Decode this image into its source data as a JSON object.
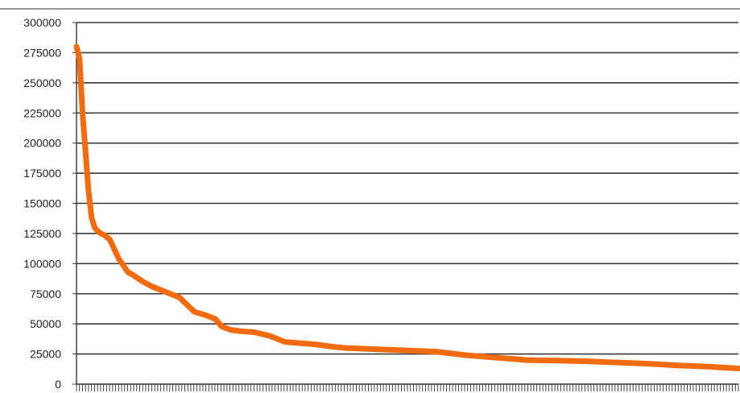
{
  "chart_data": {
    "type": "line",
    "title": "",
    "xlabel": "",
    "ylabel": "",
    "ylim": [
      0,
      300000
    ],
    "yticks": [
      {
        "value": 0,
        "label": "0"
      },
      {
        "value": 25000,
        "label": "25000"
      },
      {
        "value": 50000,
        "label": "50000"
      },
      {
        "value": 75000,
        "label": "75000"
      },
      {
        "value": 100000,
        "label": "100000"
      },
      {
        "value": 125000,
        "label": "125000"
      },
      {
        "value": 150000,
        "label": "150000"
      },
      {
        "value": 175000,
        "label": "175000"
      },
      {
        "value": 200000,
        "label": "200000"
      },
      {
        "value": 225000,
        "label": "225000"
      },
      {
        "value": 250000,
        "label": "250000"
      },
      {
        "value": 275000,
        "label": "275000"
      },
      {
        "value": 300000,
        "label": "300000"
      }
    ],
    "grid": true,
    "legend": "none",
    "x_category_count": 220,
    "colors": {
      "series": "#f26b0f",
      "grid": "#3a3a3a",
      "axis": "#333333",
      "tick_label": "#222222"
    },
    "series": [
      {
        "x": [
          1,
          2,
          3,
          5,
          6,
          7,
          8,
          9,
          10,
          12,
          15,
          18,
          20,
          23,
          26,
          30,
          35,
          40,
          44,
          47,
          49,
          52,
          55,
          60,
          65,
          70,
          75,
          80,
          86,
          90,
          100,
          110,
          120,
          130,
          140,
          150,
          160,
          170,
          180,
          190,
          200,
          210,
          220
        ],
        "values": [
          280000,
          270000,
          225000,
          160000,
          138000,
          130000,
          127000,
          125000,
          124000,
          120000,
          104000,
          93000,
          90000,
          85000,
          81000,
          77000,
          72000,
          60000,
          57000,
          54000,
          48000,
          45000,
          44000,
          43000,
          40000,
          35000,
          34000,
          33000,
          31000,
          30000,
          29000,
          28000,
          27000,
          24000,
          22000,
          20000,
          19500,
          19000,
          18000,
          17000,
          15500,
          14500,
          13000
        ]
      }
    ]
  }
}
